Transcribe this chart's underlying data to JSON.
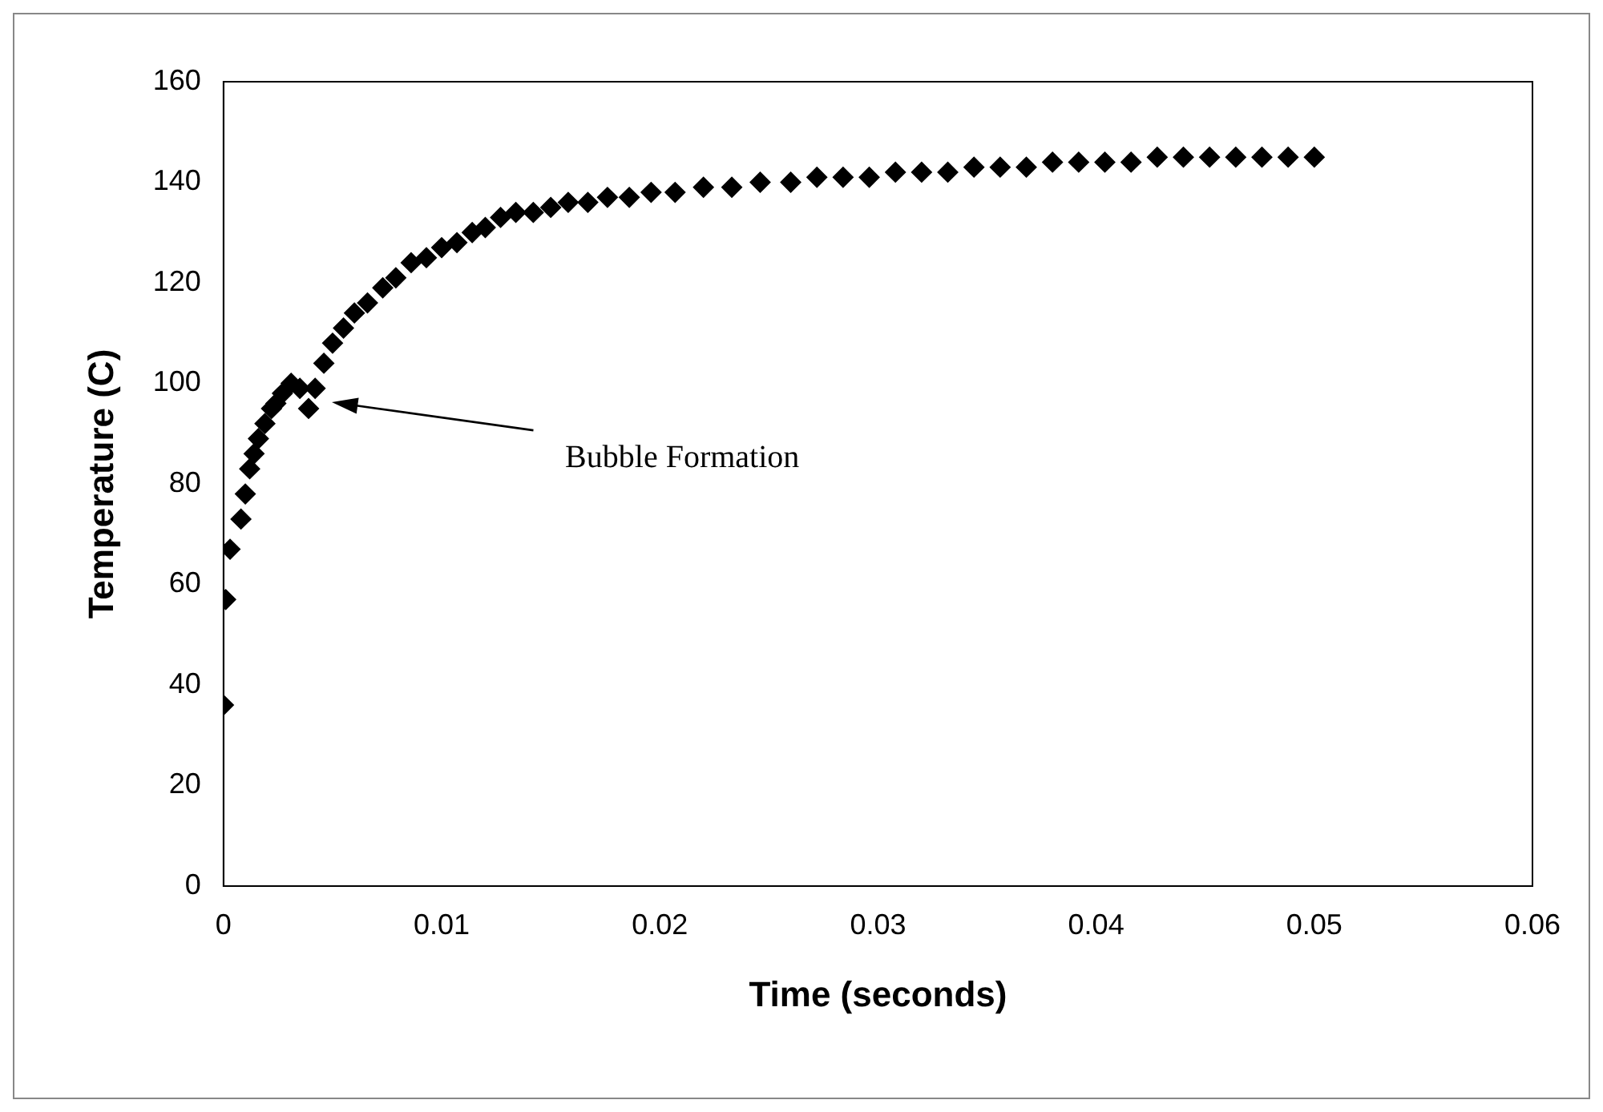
{
  "chart_data": {
    "type": "scatter",
    "xlabel": "Time (seconds)",
    "ylabel": "Temperature (C)",
    "x": [
      0,
      0.0001,
      0.0003,
      0.0008,
      0.001,
      0.0012,
      0.0014,
      0.0016,
      0.0019,
      0.0022,
      0.0024,
      0.0027,
      0.0031,
      0.0035,
      0.0039,
      0.0042,
      0.0046,
      0.005,
      0.0055,
      0.006,
      0.0066,
      0.0073,
      0.0079,
      0.0086,
      0.0093,
      0.01,
      0.0107,
      0.0114,
      0.012,
      0.0127,
      0.0134,
      0.0142,
      0.015,
      0.0158,
      0.0167,
      0.0176,
      0.0186,
      0.0196,
      0.0207,
      0.022,
      0.0233,
      0.0246,
      0.026,
      0.0272,
      0.0284,
      0.0296,
      0.0308,
      0.032,
      0.0332,
      0.0344,
      0.0356,
      0.0368,
      0.038,
      0.0392,
      0.0404,
      0.0416,
      0.0428,
      0.044,
      0.0452,
      0.0464,
      0.0476,
      0.0488,
      0.05
    ],
    "series": [
      {
        "color": "#000000",
        "values": [
          36,
          57,
          67,
          73,
          78,
          83,
          86,
          89,
          92,
          95,
          96,
          98,
          100,
          99,
          95,
          99,
          104,
          108,
          111,
          114,
          116,
          119,
          121,
          124,
          125,
          127,
          128,
          130,
          131,
          133,
          134,
          134,
          135,
          136,
          136,
          137,
          137,
          138,
          138,
          139,
          139,
          140,
          140,
          141,
          141,
          141,
          142,
          142,
          142,
          143,
          143,
          143,
          144,
          144,
          144,
          144,
          145,
          145,
          145,
          145,
          145,
          145,
          145
        ]
      }
    ],
    "xlim": [
      0,
      0.06
    ],
    "xticks": [
      0,
      0.01,
      0.02,
      0.03,
      0.04,
      0.05,
      0.06
    ],
    "ylim": [
      0,
      160
    ],
    "yticks": [
      0,
      20,
      40,
      60,
      80,
      100,
      120,
      140,
      160
    ],
    "grid": false,
    "legend": false,
    "marker": "diamond",
    "annotations": [
      "Bubble Formation"
    ]
  }
}
